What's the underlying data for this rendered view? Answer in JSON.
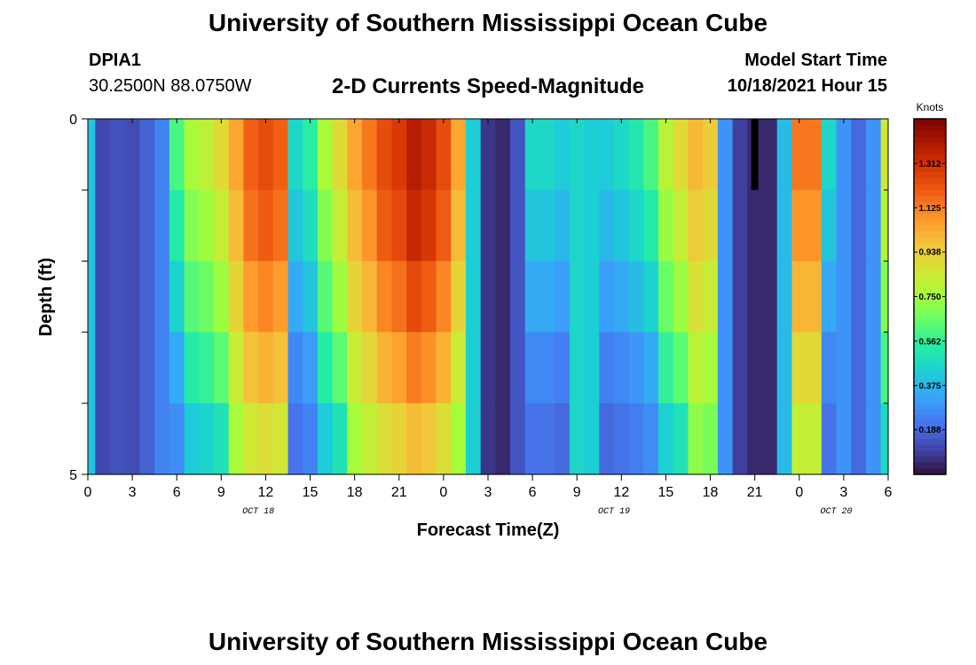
{
  "header": {
    "title": "University of Southern Mississippi Ocean Cube",
    "station_id": "DPIA1",
    "station_coords": "30.2500N  88.0750W",
    "subtitle": "2-D Currents Speed-Magnitude",
    "start_label": "Model Start Time",
    "start_value": "10/18/2021 Hour 15"
  },
  "footer": {
    "title": "University of Southern Mississippi Ocean Cube"
  },
  "colorbar": {
    "unit": "Knots",
    "ticks": [
      "1.312",
      "1.125",
      "0.938",
      "0.750",
      "0.562",
      "0.375",
      "0.188"
    ],
    "tick_values": [
      1.312,
      1.125,
      0.938,
      0.75,
      0.562,
      0.375,
      0.188
    ],
    "range": [
      0.0,
      1.5
    ],
    "colors": [
      "#30123b",
      "#4145ab",
      "#4675ed",
      "#39a2fc",
      "#1bcfd4",
      "#24eca6",
      "#61fc6c",
      "#a4fc3b",
      "#d1e834",
      "#f3c63a",
      "#fe9b2d",
      "#f36315",
      "#d93806",
      "#b11901",
      "#7a0402"
    ]
  },
  "chart_data": {
    "type": "heatmap",
    "xlabel": "Forecast Time(Z)",
    "ylabel": "Depth (ft)",
    "x_tick_labels": [
      "0",
      "3",
      "6",
      "9",
      "12",
      "15",
      "18",
      "21",
      "0",
      "3",
      "6",
      "9",
      "12",
      "15",
      "18",
      "21",
      "0",
      "3",
      "6"
    ],
    "x_range_hours": [
      0,
      54
    ],
    "date_labels": [
      {
        "label": "OCT 18",
        "hour": 11.5
      },
      {
        "label": "OCT 19",
        "hour": 35.5
      },
      {
        "label": "OCT 20",
        "hour": 50.5
      }
    ],
    "y_tick_labels": [
      "0",
      "5"
    ],
    "ylim": [
      0,
      5
    ],
    "depth_levels": 5,
    "anomaly": {
      "hour": 45,
      "depth_level": 0
    },
    "speed_profile_knots": [
      0.42,
      0.12,
      0.14,
      0.13,
      0.18,
      0.26,
      0.72,
      0.8,
      0.85,
      0.95,
      1.1,
      1.25,
      1.3,
      1.25,
      0.55,
      0.65,
      0.8,
      0.95,
      1.1,
      1.2,
      1.3,
      1.35,
      1.45,
      1.4,
      1.3,
      1.1,
      0.45,
      0.08,
      0.05,
      0.15,
      0.55,
      0.55,
      0.5,
      0.48,
      0.45,
      0.5,
      0.55,
      0.62,
      0.72,
      0.84,
      0.95,
      1.05,
      1.0,
      0.3,
      0.1,
      0.05,
      0.05,
      0.4,
      1.2,
      1.2,
      0.55,
      0.3,
      0.2,
      0.3,
      0.9
    ],
    "depth_factors": [
      [
        1.0,
        1.0,
        1.0,
        1.0,
        1.0
      ],
      [
        1.0,
        1.0,
        1.0,
        1.0,
        1.0
      ],
      [
        0.88,
        0.78,
        0.65,
        0.5,
        0.4
      ],
      [
        1.0,
        0.92,
        0.82,
        0.7,
        0.55
      ],
      [
        1.0,
        0.95,
        0.88,
        0.8,
        0.72
      ],
      [
        1.0,
        0.97,
        0.9,
        0.82,
        0.72
      ],
      [
        1.0,
        0.95,
        0.9,
        0.8,
        0.68
      ]
    ]
  }
}
